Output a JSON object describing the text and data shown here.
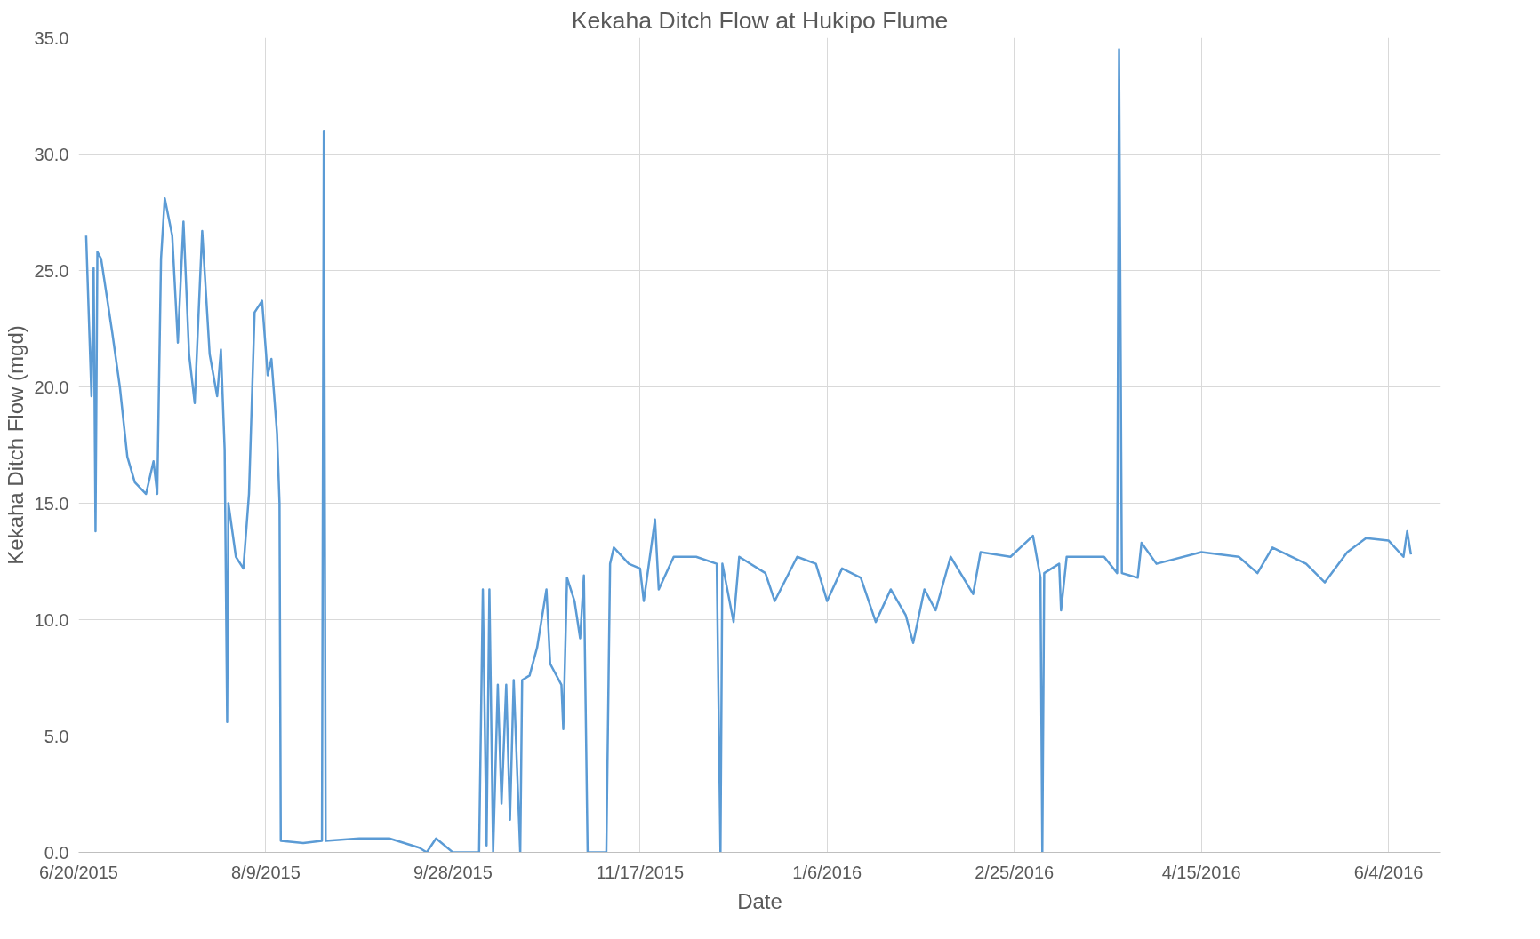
{
  "chart_data": {
    "type": "line",
    "title": "Kekaha Ditch Flow at Hukipo Flume",
    "xlabel": "Date",
    "ylabel": "Kekaha Ditch Flow (mgd)",
    "xlim": [
      "2015-06-20",
      "2016-06-18"
    ],
    "xticks": [
      {
        "value": "2015-06-20",
        "label": "6/20/2015"
      },
      {
        "value": "2015-08-09",
        "label": "8/9/2015"
      },
      {
        "value": "2015-09-28",
        "label": "9/28/2015"
      },
      {
        "value": "2015-11-17",
        "label": "11/17/2015"
      },
      {
        "value": "2016-01-06",
        "label": "1/6/2016"
      },
      {
        "value": "2016-02-25",
        "label": "2/25/2016"
      },
      {
        "value": "2016-04-15",
        "label": "4/15/2016"
      },
      {
        "value": "2016-06-04",
        "label": "6/4/2016"
      }
    ],
    "ylim": [
      0,
      35
    ],
    "yticks": [
      {
        "value": 0,
        "label": "0.0"
      },
      {
        "value": 5,
        "label": "5.0"
      },
      {
        "value": 10,
        "label": "10.0"
      },
      {
        "value": 15,
        "label": "15.0"
      },
      {
        "value": 20,
        "label": "20.0"
      },
      {
        "value": 25,
        "label": "25.0"
      },
      {
        "value": 30,
        "label": "30.0"
      },
      {
        "value": 35,
        "label": "35.0"
      }
    ],
    "grid": true,
    "marker": "none",
    "line_style": "solid",
    "x": [
      "2015-06-22",
      "2015-06-23T10:00",
      "2015-06-24",
      "2015-06-24T12:00",
      "2015-06-25",
      "2015-06-26",
      "2015-06-29",
      "2015-07-01",
      "2015-07-03",
      "2015-07-05",
      "2015-07-08",
      "2015-07-10",
      "2015-07-11",
      "2015-07-12",
      "2015-07-13",
      "2015-07-15",
      "2015-07-16T12:00",
      "2015-07-18",
      "2015-07-19T12:00",
      "2015-07-21",
      "2015-07-23",
      "2015-07-25",
      "2015-07-27",
      "2015-07-28",
      "2015-07-29",
      "2015-07-29T16:00",
      "2015-07-30",
      "2015-08-01",
      "2015-08-03",
      "2015-08-04T12:00",
      "2015-08-06",
      "2015-08-08",
      "2015-08-09T12:00",
      "2015-08-10T12:00",
      "2015-08-12",
      "2015-08-12T16:00",
      "2015-08-13",
      "2015-08-19",
      "2015-08-24",
      "2015-08-24T12:00",
      "2015-08-25",
      "2015-09-03",
      "2015-09-11",
      "2015-09-19",
      "2015-09-21",
      "2015-09-23T12:00",
      "2015-09-28",
      "2015-10-05",
      "2015-10-06",
      "2015-10-07",
      "2015-10-07T18:00",
      "2015-10-08T18:00",
      "2015-10-10",
      "2015-10-11",
      "2015-10-12T06:00",
      "2015-10-13T06:00",
      "2015-10-14T06:00",
      "2015-10-16",
      "2015-10-16T12:00",
      "2015-10-18T12:00",
      "2015-10-20T12:00",
      "2015-10-23",
      "2015-10-24",
      "2015-10-27",
      "2015-10-27T12:00",
      "2015-10-28T12:00",
      "2015-10-30T12:00",
      "2015-11-01",
      "2015-11-02",
      "2015-11-03",
      "2015-11-08",
      "2015-11-09",
      "2015-11-10",
      "2015-11-14",
      "2015-11-17",
      "2015-11-18",
      "2015-11-21",
      "2015-11-22",
      "2015-11-26",
      "2015-12-02",
      "2015-12-07T12:00",
      "2015-12-08T12:00",
      "2015-12-09",
      "2015-12-12",
      "2015-12-13T12:00",
      "2015-12-20T12:00",
      "2015-12-23",
      "2015-12-29",
      "2016-01-03",
      "2016-01-06",
      "2016-01-10",
      "2016-01-15",
      "2016-01-19",
      "2016-01-23",
      "2016-01-27",
      "2016-01-29",
      "2016-02-01",
      "2016-02-04",
      "2016-02-08",
      "2016-02-14",
      "2016-02-16",
      "2016-02-24",
      "2016-03-01",
      "2016-03-03",
      "2016-03-03T12:00",
      "2016-03-04",
      "2016-03-08",
      "2016-03-08T12:00",
      "2016-03-10",
      "2016-03-20",
      "2016-03-23T12:00",
      "2016-03-24",
      "2016-03-24T18:00",
      "2016-03-29",
      "2016-03-30",
      "2016-04-03",
      "2016-04-15",
      "2016-04-25",
      "2016-04-30",
      "2016-05-04",
      "2016-05-13",
      "2016-05-18",
      "2016-05-24",
      "2016-05-29",
      "2016-06-04",
      "2016-06-08",
      "2016-06-09",
      "2016-06-10"
    ],
    "series": [
      {
        "color": "#5b9bd5",
        "values": [
          26.5,
          19.6,
          25.1,
          13.8,
          25.8,
          25.5,
          22.3,
          20.0,
          17.0,
          15.9,
          15.4,
          16.8,
          15.4,
          25.5,
          28.1,
          26.5,
          21.9,
          27.1,
          21.4,
          19.3,
          26.7,
          21.4,
          19.6,
          21.6,
          17.3,
          5.6,
          15.0,
          12.7,
          12.2,
          15.4,
          23.2,
          23.7,
          20.5,
          21.2,
          18.0,
          15.0,
          0.5,
          0.4,
          0.5,
          31.0,
          0.5,
          0.6,
          0.6,
          0.2,
          0.0,
          0.6,
          0.0,
          0.0,
          11.3,
          0.3,
          11.3,
          0.0,
          7.2,
          2.1,
          7.2,
          1.4,
          7.4,
          0.0,
          7.4,
          7.6,
          8.8,
          11.3,
          8.1,
          7.2,
          5.3,
          11.8,
          10.8,
          9.2,
          11.9,
          0.0,
          0.0,
          12.4,
          13.1,
          12.4,
          12.2,
          10.8,
          14.3,
          11.3,
          12.7,
          12.7,
          12.4,
          0.0,
          12.4,
          9.9,
          12.7,
          12.0,
          10.8,
          12.7,
          12.4,
          10.8,
          12.2,
          11.8,
          9.9,
          11.3,
          10.2,
          9.0,
          11.3,
          10.4,
          12.7,
          11.1,
          12.9,
          12.7,
          13.6,
          11.8,
          0.0,
          12.0,
          12.4,
          10.4,
          12.7,
          12.7,
          12.0,
          34.5,
          12.0,
          11.8,
          13.3,
          12.4,
          12.9,
          12.7,
          12.0,
          13.1,
          12.4,
          11.6,
          12.9,
          13.5,
          13.4,
          12.7,
          13.8,
          12.8
        ]
      }
    ]
  }
}
